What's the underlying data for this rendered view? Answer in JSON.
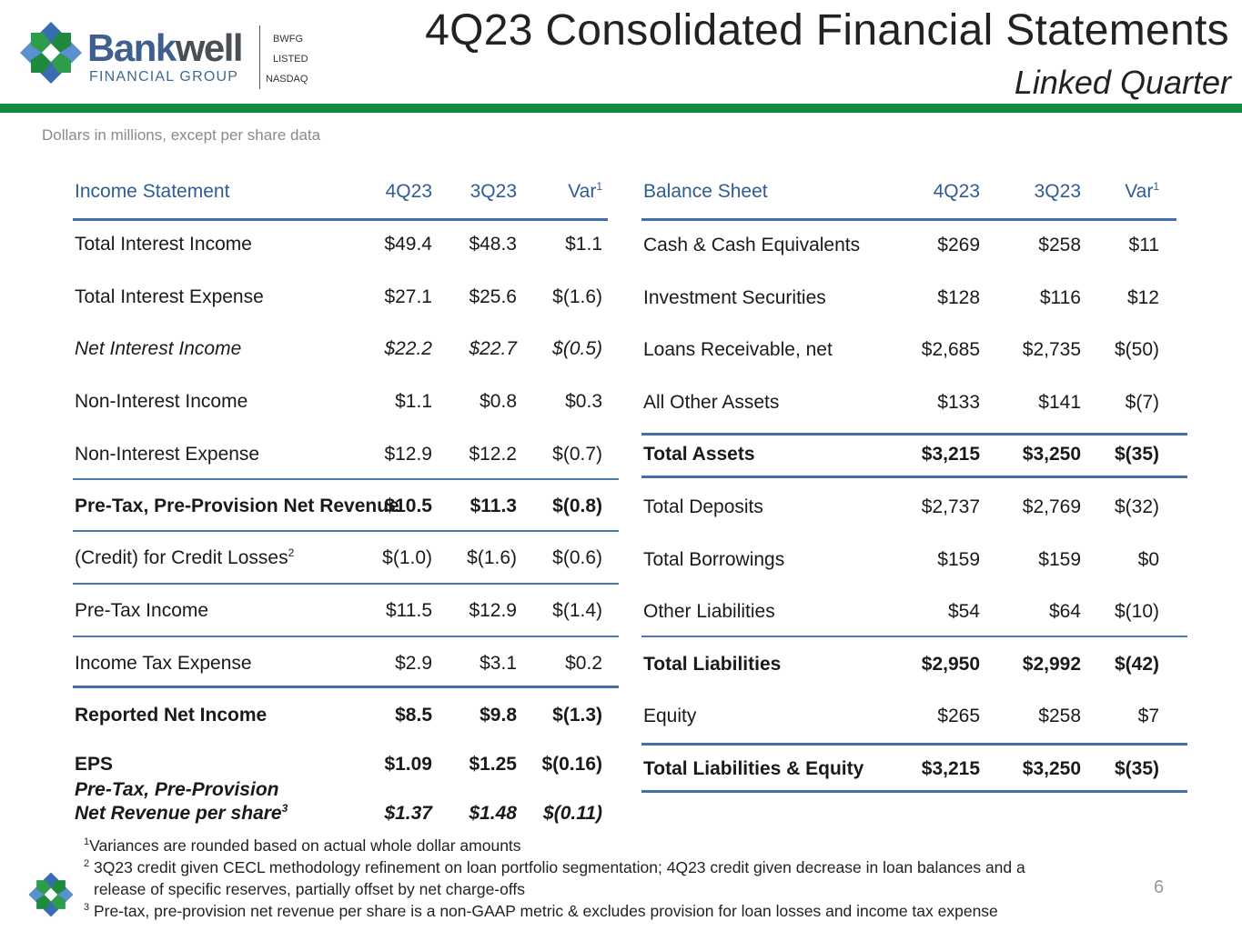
{
  "header": {
    "brand_part1": "Bank",
    "brand_part2": "well",
    "brand_sub": "FINANCIAL GROUP",
    "ticker": "BWFG",
    "listed": "LISTED",
    "exchange": "NASDAQ",
    "title": "4Q23 Consolidated Financial Statements",
    "subtitle": "Linked Quarter"
  },
  "note": "Dollars in millions, except per share data",
  "income": {
    "header": {
      "label": "Income Statement",
      "c1": "4Q23",
      "c2": "3Q23",
      "c3": "Var",
      "c3_sup": "1"
    },
    "rows": [
      {
        "label": "Total Interest Income",
        "c1": "$49.4",
        "c2": "$48.3",
        "c3": "$1.1"
      },
      {
        "label": "Total Interest Expense",
        "c1": "$27.1",
        "c2": "$25.6",
        "c3": "$(1.6)"
      },
      {
        "label": "Net Interest Income",
        "c1": "$22.2",
        "c2": "$22.7",
        "c3": "$(0.5)"
      },
      {
        "label": "Non-Interest Income",
        "c1": "$1.1",
        "c2": "$0.8",
        "c3": "$0.3"
      },
      {
        "label": "Non-Interest Expense",
        "c1": "$12.9",
        "c2": "$12.2",
        "c3": "$(0.7)"
      },
      {
        "label": "Pre-Tax, Pre-Provision Net Revenue",
        "c1": "$10.5",
        "c2": "$11.3",
        "c3": "$(0.8)"
      },
      {
        "label": "(Credit) for Credit Losses",
        "label_sup": "2",
        "c1": "$(1.0)",
        "c2": "$(1.6)",
        "c3": "$(0.6)"
      },
      {
        "label": "Pre-Tax Income",
        "c1": "$11.5",
        "c2": "$12.9",
        "c3": "$(1.4)"
      },
      {
        "label": "Income Tax Expense",
        "c1": "$2.9",
        "c2": "$3.1",
        "c3": "$0.2"
      },
      {
        "label": "Reported Net Income",
        "c1": "$8.5",
        "c2": "$9.8",
        "c3": "$(1.3)"
      },
      {
        "label": "EPS",
        "c1": "$1.09",
        "c2": "$1.25",
        "c3": "$(0.16)"
      }
    ],
    "pppnr": {
      "line1": "Pre-Tax, Pre-Provision",
      "line2": "Net Revenue per share",
      "sup": "3",
      "c1": "$1.37",
      "c2": "$1.48",
      "c3": "$(0.11)"
    }
  },
  "balance": {
    "header": {
      "label": "Balance Sheet",
      "c1": "4Q23",
      "c2": "3Q23",
      "c3": "Var",
      "c3_sup": "1"
    },
    "rows": [
      {
        "label": "Cash & Cash Equivalents",
        "c1": "$269",
        "c2": "$258",
        "c3": "$11"
      },
      {
        "label": "Investment Securities",
        "c1": "$128",
        "c2": "$116",
        "c3": "$12"
      },
      {
        "label": "Loans Receivable, net",
        "c1": "$2,685",
        "c2": "$2,735",
        "c3": "$(50)"
      },
      {
        "label": "All Other Assets",
        "c1": "$133",
        "c2": "$141",
        "c3": "$(7)"
      },
      {
        "label": "Total Assets",
        "c1": "$3,215",
        "c2": "$3,250",
        "c3": "$(35)"
      },
      {
        "label": "Total Deposits",
        "c1": "$2,737",
        "c2": "$2,769",
        "c3": "$(32)"
      },
      {
        "label": "Total Borrowings",
        "c1": "$159",
        "c2": "$159",
        "c3": "$0"
      },
      {
        "label": "Other Liabilities",
        "c1": "$54",
        "c2": "$64",
        "c3": "$(10)"
      },
      {
        "label": "Total Liabilities",
        "c1": "$2,950",
        "c2": "$2,992",
        "c3": "$(42)"
      },
      {
        "label": "Equity",
        "c1": "$265",
        "c2": "$258",
        "c3": "$7"
      },
      {
        "label": "Total Liabilities & Equity",
        "c1": "$3,215",
        "c2": "$3,250",
        "c3": "$(35)"
      }
    ]
  },
  "footnotes": [
    {
      "num": "1",
      "text": "Variances are rounded based on actual whole dollar amounts"
    },
    {
      "num": "2",
      "text": "3Q23 credit given CECL methodology refinement on loan portfolio segmentation; 4Q23 credit given decrease in loan balances and a"
    },
    {
      "num": "",
      "text": "release of specific reserves, partially offset by net charge-offs"
    },
    {
      "num": "3",
      "text": "Pre-tax, pre-provision net revenue per share is a non-GAAP metric & excludes provision for loan losses and income tax expense"
    }
  ],
  "page_number": "6",
  "colors": {
    "accent_green": "#118b3d",
    "header_blue": "#2e5c94",
    "rule_blue": "#3f6ea8"
  }
}
